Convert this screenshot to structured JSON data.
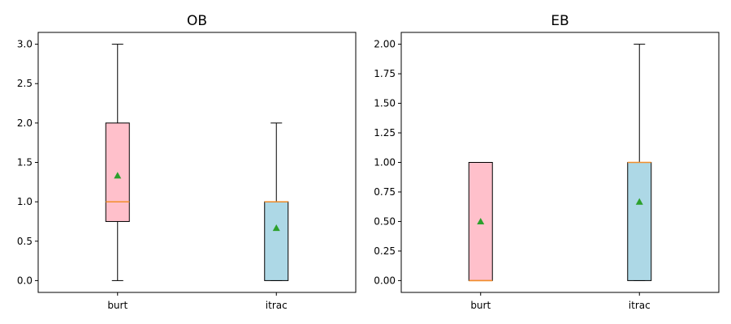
{
  "chart_data": [
    {
      "type": "box",
      "title": "OB",
      "categories": [
        "burt",
        "itrac"
      ],
      "ylim": [
        -0.15,
        3.15
      ],
      "yticks": [
        0.0,
        0.5,
        1.0,
        1.5,
        2.0,
        2.5,
        3.0
      ],
      "ytick_labels": [
        "0.0",
        "0.5",
        "1.0",
        "1.5",
        "2.0",
        "2.5",
        "3.0"
      ],
      "boxes": [
        {
          "name": "burt",
          "min": 0.0,
          "q1": 0.75,
          "median": 1.0,
          "q3": 2.0,
          "max": 3.0,
          "mean": 1.333,
          "color": "#ffc0cb"
        },
        {
          "name": "itrac",
          "min": 0.0,
          "q1": 0.0,
          "median": 1.0,
          "q3": 1.0,
          "max": 2.0,
          "mean": 0.667,
          "color": "#add8e6"
        }
      ],
      "median_color": "#f28e2b",
      "mean_marker_color": "#2ca02c",
      "grid": false
    },
    {
      "type": "box",
      "title": "EB",
      "categories": [
        "burt",
        "itrac"
      ],
      "ylim": [
        -0.1,
        2.1
      ],
      "yticks": [
        0.0,
        0.25,
        0.5,
        0.75,
        1.0,
        1.25,
        1.5,
        1.75,
        2.0
      ],
      "ytick_labels": [
        "0.00",
        "0.25",
        "0.50",
        "0.75",
        "1.00",
        "1.25",
        "1.50",
        "1.75",
        "2.00"
      ],
      "boxes": [
        {
          "name": "burt",
          "min": 0.0,
          "q1": 0.0,
          "median": 0.0,
          "q3": 1.0,
          "max": 1.0,
          "mean": 0.5,
          "color": "#ffc0cb"
        },
        {
          "name": "itrac",
          "min": 0.0,
          "q1": 0.0,
          "median": 1.0,
          "q3": 1.0,
          "max": 2.0,
          "mean": 0.667,
          "color": "#add8e6"
        }
      ],
      "median_color": "#f28e2b",
      "mean_marker_color": "#2ca02c",
      "grid": false
    }
  ]
}
